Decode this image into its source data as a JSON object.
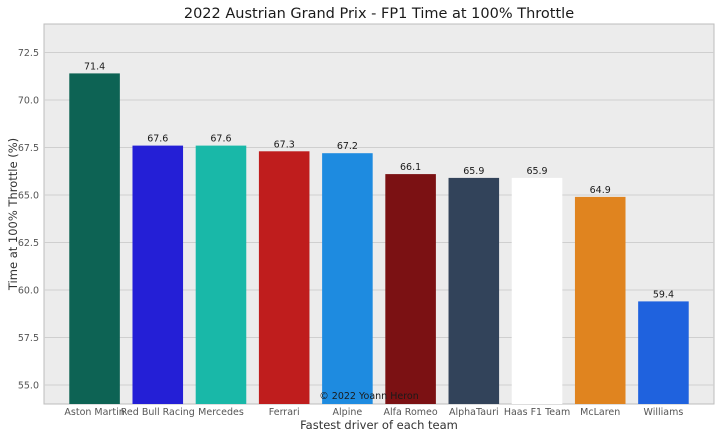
{
  "chart_data": {
    "type": "bar",
    "title": "2022 Austrian Grand Prix - FP1 Time at 100% Throttle",
    "xlabel": "Fastest driver of each team",
    "ylabel": "Time at 100% Throttle (%)",
    "ylim": [
      54.0,
      74.0
    ],
    "yticks": [
      "55.0",
      "57.5",
      "60.0",
      "62.5",
      "65.0",
      "67.5",
      "70.0",
      "72.5"
    ],
    "grid": true,
    "categories": [
      "Aston Martin",
      "Red Bull Racing",
      "Mercedes",
      "Ferrari",
      "Alpine",
      "Alfa Romeo",
      "AlphaTauri",
      "Haas F1 Team",
      "McLaren",
      "Williams"
    ],
    "values": [
      71.4,
      67.6,
      67.6,
      67.3,
      67.2,
      66.1,
      65.9,
      65.9,
      64.9,
      59.4
    ],
    "value_labels": [
      "71.4",
      "67.6",
      "67.6",
      "67.3",
      "67.2",
      "66.1",
      "65.9",
      "65.9",
      "64.9",
      "59.4"
    ],
    "colors": [
      "#0d6354",
      "#241fd6",
      "#19b8a8",
      "#bf1d1d",
      "#1e8be0",
      "#7b1113",
      "#32435a",
      "#ffffff",
      "#e0841f",
      "#1f62de"
    ],
    "annotation": "© 2022 Yoann Heron",
    "background": "#ececec",
    "gridColor": "#cfcfcf"
  }
}
